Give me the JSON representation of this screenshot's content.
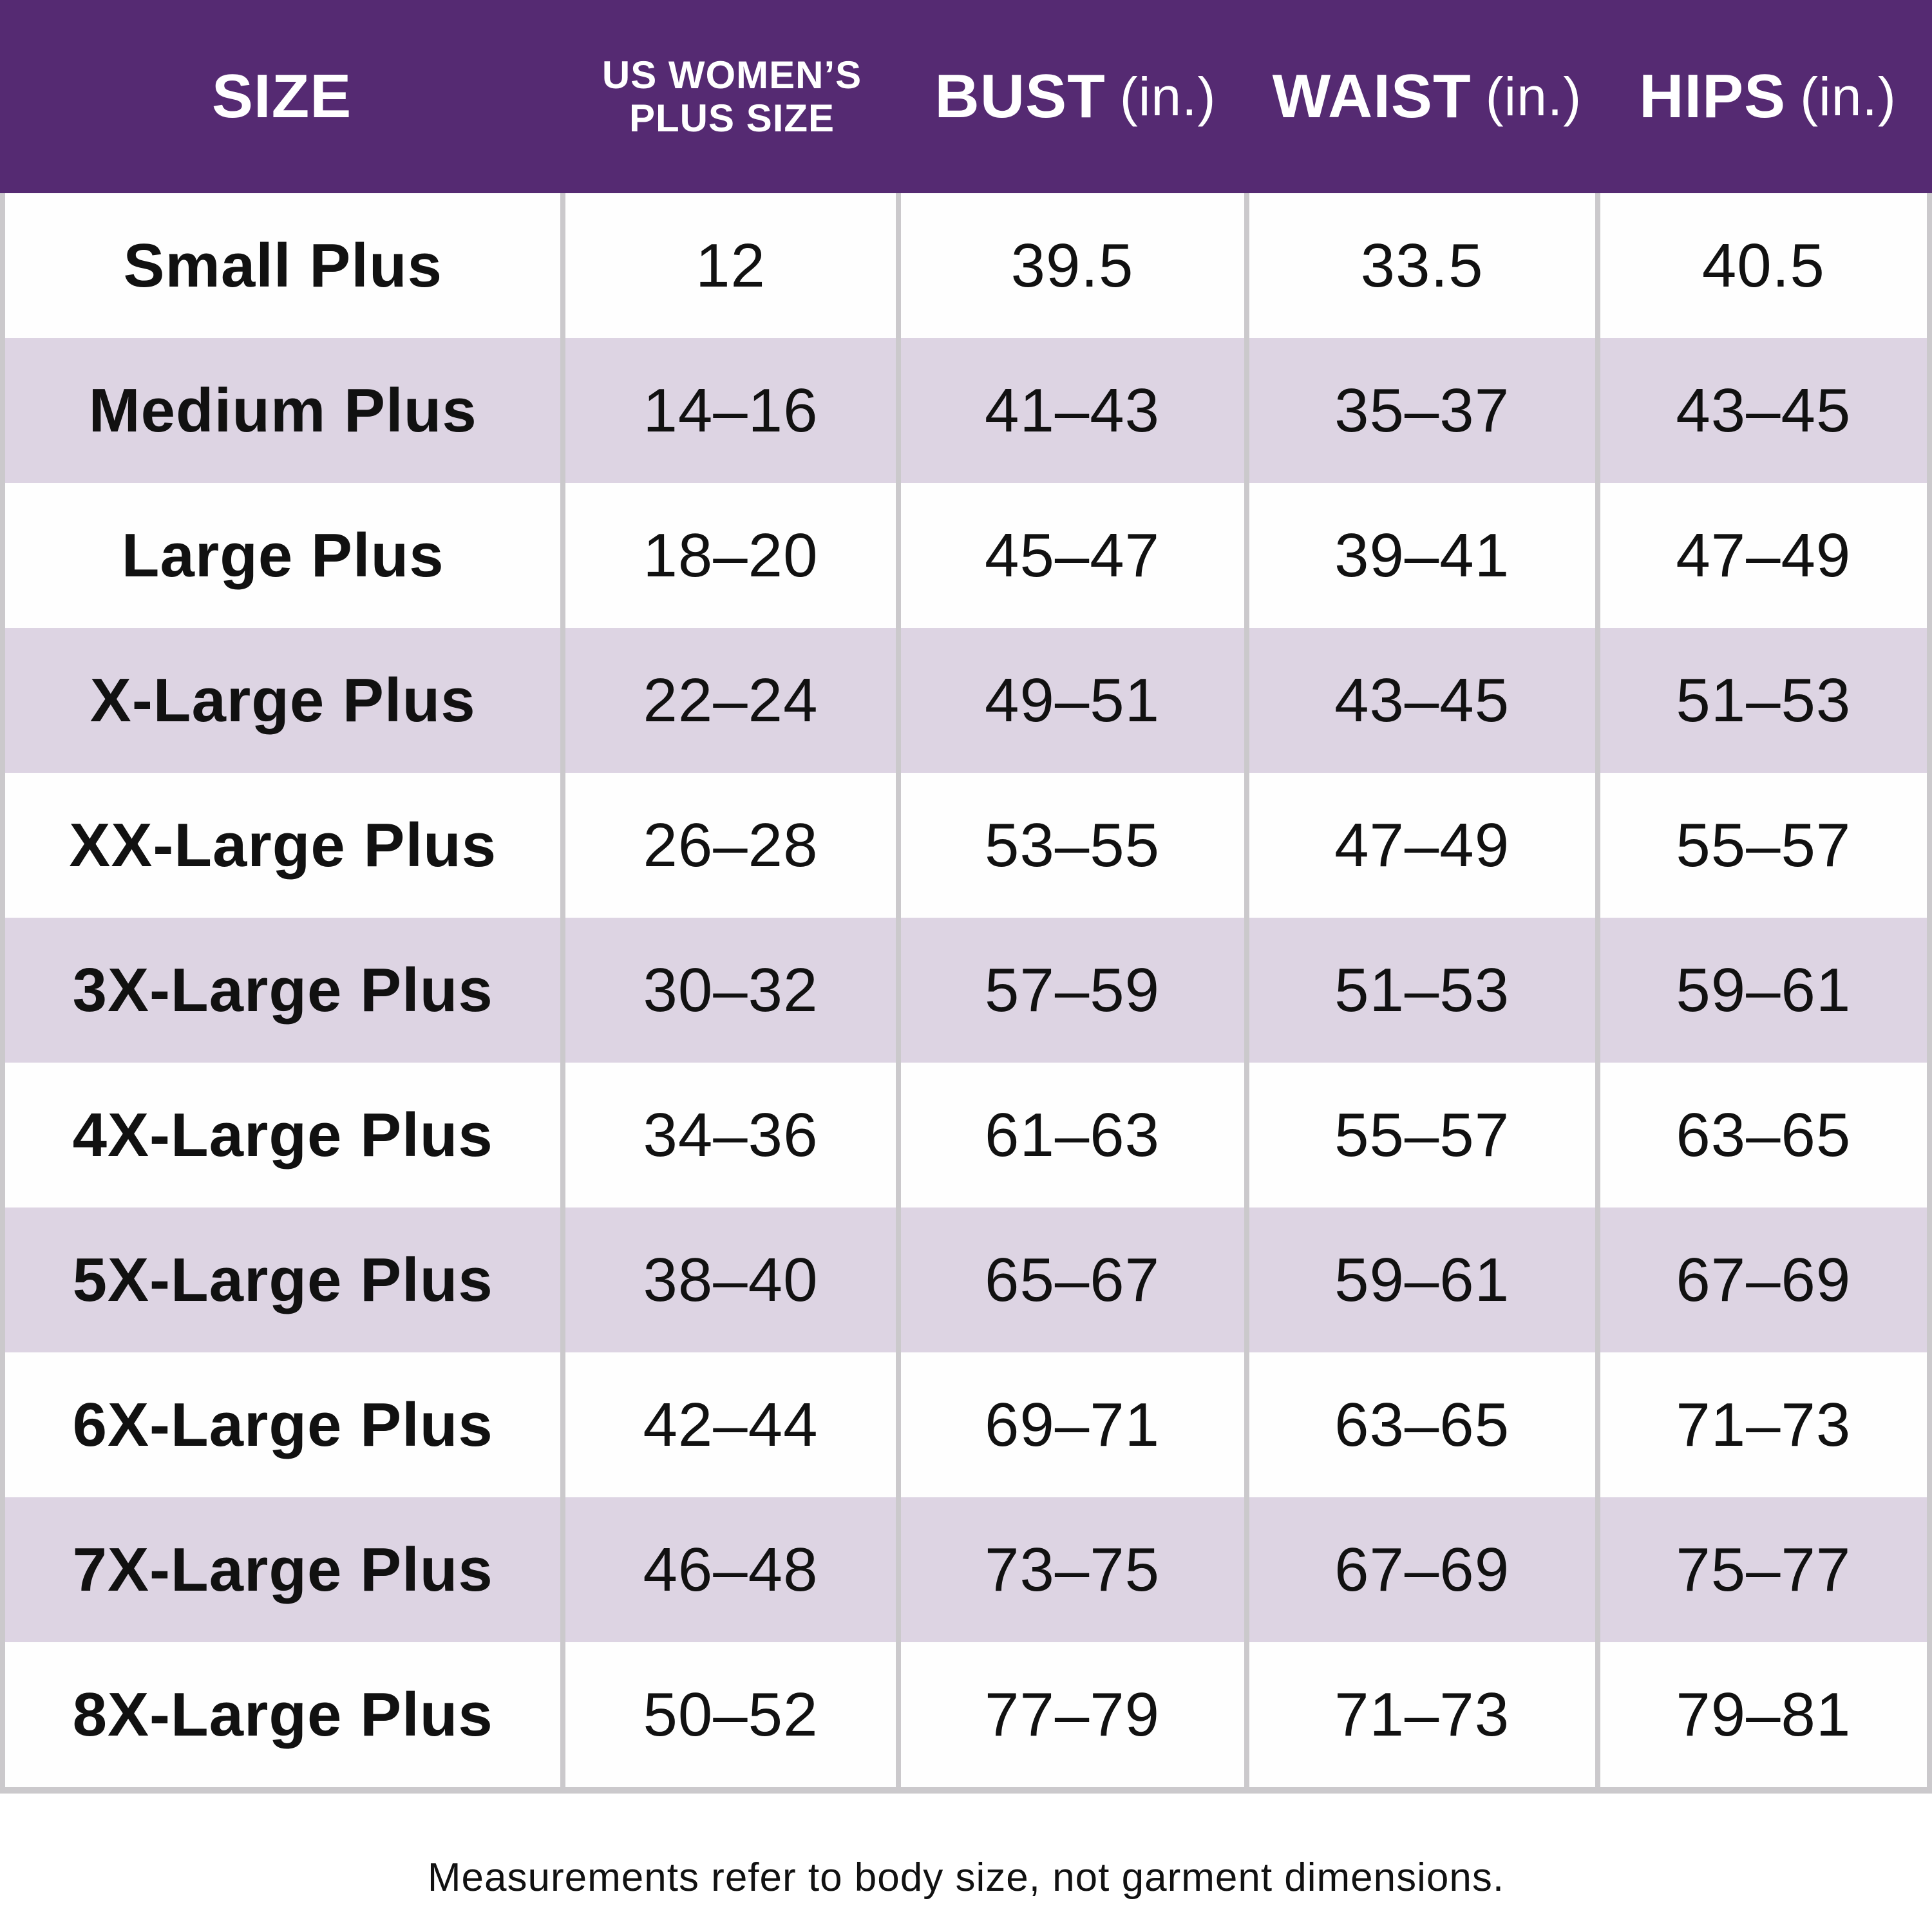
{
  "header": {
    "col_size": "SIZE",
    "col_us_plus_line1": "US WOMEN’S",
    "col_us_plus_line2": "PLUS SIZE",
    "col_bust": "BUST",
    "col_bust_unit": "(in.)",
    "col_waist": "WAIST",
    "col_waist_unit": "(in.)",
    "col_hips": "HIPS",
    "col_hips_unit": "(in.)"
  },
  "table": {
    "rows": [
      {
        "size": "Small Plus",
        "us_plus_size": "12",
        "bust": "39.5",
        "waist": "33.5",
        "hips": "40.5"
      },
      {
        "size": "Medium Plus",
        "us_plus_size": "14–16",
        "bust": "41–43",
        "waist": "35–37",
        "hips": "43–45"
      },
      {
        "size": "Large Plus",
        "us_plus_size": "18–20",
        "bust": "45–47",
        "waist": "39–41",
        "hips": "47–49"
      },
      {
        "size": "X-Large Plus",
        "us_plus_size": "22–24",
        "bust": "49–51",
        "waist": "43–45",
        "hips": "51–53"
      },
      {
        "size": "XX-Large Plus",
        "us_plus_size": "26–28",
        "bust": "53–55",
        "waist": "47–49",
        "hips": "55–57"
      },
      {
        "size": "3X-Large Plus",
        "us_plus_size": "30–32",
        "bust": "57–59",
        "waist": "51–53",
        "hips": "59–61"
      },
      {
        "size": "4X-Large Plus",
        "us_plus_size": "34–36",
        "bust": "61–63",
        "waist": "55–57",
        "hips": "63–65"
      },
      {
        "size": "5X-Large Plus",
        "us_plus_size": "38–40",
        "bust": "65–67",
        "waist": "59–61",
        "hips": "67–69"
      },
      {
        "size": "6X-Large Plus",
        "us_plus_size": "42–44",
        "bust": "69–71",
        "waist": "63–65",
        "hips": "71–73"
      },
      {
        "size": "7X-Large Plus",
        "us_plus_size": "46–48",
        "bust": "73–75",
        "waist": "67–69",
        "hips": "75–77"
      },
      {
        "size": "8X-Large Plus",
        "us_plus_size": "50–52",
        "bust": "77–79",
        "waist": "71–73",
        "hips": "79–81"
      }
    ]
  },
  "footer": {
    "note": "Measurements refer to body size, not garment dimensions."
  },
  "colors": {
    "header_bg": "#552A72",
    "header_text": "#FFFFFF",
    "row_bg": "#FEFEFE",
    "row_alt_bg": "#DDD4E3",
    "border": "#CBC9CC",
    "text": "#111111"
  }
}
